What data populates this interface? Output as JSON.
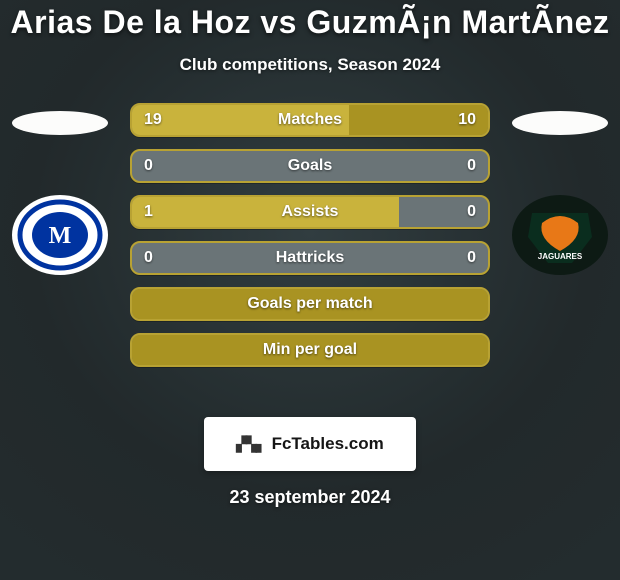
{
  "title": "Arias De la Hoz vs GuzmÃ¡n MartÃ­nez",
  "subtitle": "Club competitions, Season 2024",
  "date": "23 september 2024",
  "footer_brand": "FcTables.com",
  "colors": {
    "bg_top": "#1e2628",
    "bg_mid": "#2e3a3d",
    "bg_bottom": "#20292b",
    "bar_fill": "#a99322",
    "bar_highlight": "#c9b33c",
    "bar_track": "#6a7477",
    "bar_border": "#b8a233",
    "head_shadow": "#fcfcfb"
  },
  "players": {
    "left": {
      "club_name": "Millonarios",
      "crest": {
        "bg": "#ffffff",
        "ring": "#0033a0",
        "inner": "#0033a0",
        "letter": "M",
        "letter_color": "#ffffff"
      }
    },
    "right": {
      "club_name": "Jaguares",
      "crest": {
        "bg": "#0d1a14",
        "shield": "#0a2d1e",
        "accent": "#e87817",
        "word": "JAGUARES",
        "word_color": "#ffffff"
      }
    }
  },
  "rows": [
    {
      "label": "Matches",
      "left_val": "19",
      "right_val": "10",
      "left_pct": 61,
      "right_pct": 39,
      "show_vals": true,
      "highlight_left": true
    },
    {
      "label": "Goals",
      "left_val": "0",
      "right_val": "0",
      "left_pct": 0,
      "right_pct": 0,
      "show_vals": true,
      "highlight_left": false
    },
    {
      "label": "Assists",
      "left_val": "1",
      "right_val": "0",
      "left_pct": 75,
      "right_pct": 0,
      "show_vals": true,
      "highlight_left": true
    },
    {
      "label": "Hattricks",
      "left_val": "0",
      "right_val": "0",
      "left_pct": 0,
      "right_pct": 0,
      "show_vals": true,
      "highlight_left": false
    },
    {
      "label": "Goals per match",
      "left_val": "",
      "right_val": "",
      "left_pct": 100,
      "right_pct": 0,
      "show_vals": false,
      "highlight_left": false
    },
    {
      "label": "Min per goal",
      "left_val": "",
      "right_val": "",
      "left_pct": 100,
      "right_pct": 0,
      "show_vals": false,
      "highlight_left": false
    }
  ]
}
